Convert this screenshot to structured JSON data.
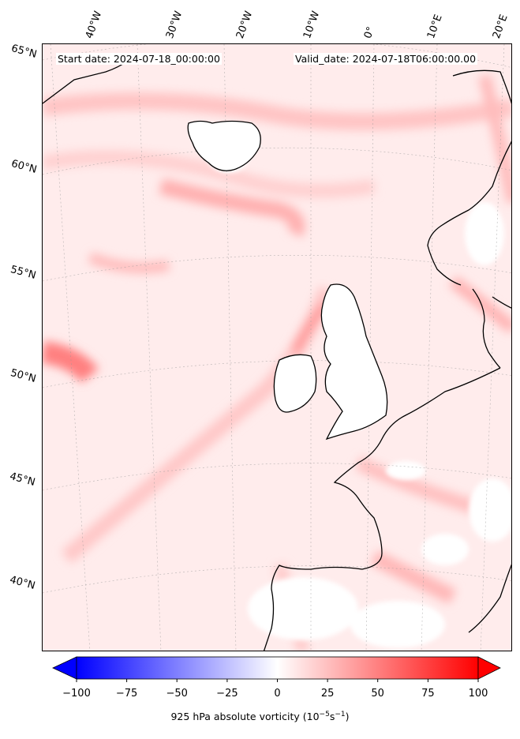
{
  "map": {
    "start_date": "Start date: 2024-07-18_00:00:00",
    "valid_date": "Valid_date: 2024-07-18T06:00:00.00",
    "lon_labels": [
      "40°W",
      "30°W",
      "20°W",
      "10°W",
      "0°",
      "10°E",
      "20°E"
    ],
    "lat_labels": [
      "65°N",
      "60°N",
      "55°N",
      "50°N",
      "45°N",
      "40°N"
    ]
  },
  "colorbar": {
    "label": "925 hPa absolute vorticity (10",
    "label_exp": "−5",
    "label_unit": "s",
    "label_unit_exp": "−1",
    "label_close": ")",
    "ticks": [
      "−100",
      "−75",
      "−50",
      "−25",
      "0",
      "25",
      "50",
      "75",
      "100"
    ],
    "vmin": -100,
    "vmax": 100,
    "colors": {
      "low": "#0000ff",
      "mid": "#ffffff",
      "high": "#ff0000"
    }
  }
}
